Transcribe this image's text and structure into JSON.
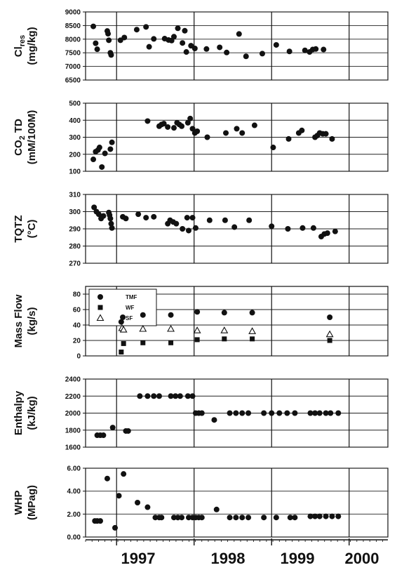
{
  "chart_data": {
    "type": "scatter",
    "x_axis": {
      "labels": [
        "1997",
        "1998",
        "1999",
        "2000"
      ],
      "boundaries": [
        1997.0,
        1998.0,
        1999.0,
        2000.0
      ],
      "range": [
        1996.6,
        2000.5
      ]
    },
    "panels": [
      {
        "id": "clres",
        "ylabel_line1": "Cl",
        "ylabel_sub": "res",
        "ylabel_line2": "(mg/kg)",
        "ylim": [
          6500,
          9000
        ],
        "yticks": [
          6500,
          7000,
          7500,
          8000,
          8500,
          9000
        ],
        "series": [
          {
            "marker": "circle",
            "points": [
              [
                1996.7,
                8470
              ],
              [
                1996.73,
                7850
              ],
              [
                1996.75,
                7630
              ],
              [
                1996.88,
                8300
              ],
              [
                1996.89,
                8200
              ],
              [
                1996.9,
                7960
              ],
              [
                1996.92,
                7500
              ],
              [
                1996.93,
                7420
              ],
              [
                1997.05,
                7960
              ],
              [
                1997.1,
                8060
              ],
              [
                1997.26,
                8350
              ],
              [
                1997.38,
                8450
              ],
              [
                1997.42,
                7720
              ],
              [
                1997.48,
                8010
              ],
              [
                1997.62,
                8020
              ],
              [
                1997.67,
                7970
              ],
              [
                1997.71,
                7950
              ],
              [
                1997.74,
                8090
              ],
              [
                1997.79,
                8400
              ],
              [
                1997.85,
                7860
              ],
              [
                1997.88,
                8310
              ],
              [
                1997.9,
                7530
              ],
              [
                1997.96,
                7760
              ],
              [
                1998.01,
                7660
              ],
              [
                1998.16,
                7640
              ],
              [
                1998.33,
                7700
              ],
              [
                1998.42,
                7510
              ],
              [
                1998.58,
                8190
              ],
              [
                1998.67,
                7370
              ],
              [
                1998.88,
                7470
              ],
              [
                1999.06,
                7790
              ],
              [
                1999.23,
                7550
              ],
              [
                1999.43,
                7590
              ],
              [
                1999.49,
                7530
              ],
              [
                1999.53,
                7620
              ],
              [
                1999.57,
                7640
              ],
              [
                1999.67,
                7620
              ]
            ]
          }
        ]
      },
      {
        "id": "co2td",
        "ylabel_line1": "CO",
        "ylabel_sub": "2",
        "ylabel_after_sub": " TD",
        "ylabel_line2": "(mM/100M)",
        "ylim": [
          100,
          500
        ],
        "yticks": [
          100,
          200,
          300,
          400,
          500
        ],
        "series": [
          {
            "marker": "circle",
            "points": [
              [
                1996.7,
                170
              ],
              [
                1996.73,
                215
              ],
              [
                1996.76,
                225
              ],
              [
                1996.78,
                240
              ],
              [
                1996.81,
                125
              ],
              [
                1996.85,
                205
              ],
              [
                1996.92,
                230
              ],
              [
                1996.94,
                270
              ],
              [
                1997.4,
                395
              ],
              [
                1997.55,
                365
              ],
              [
                1997.58,
                375
              ],
              [
                1997.61,
                380
              ],
              [
                1997.66,
                360
              ],
              [
                1997.74,
                355
              ],
              [
                1997.78,
                385
              ],
              [
                1997.81,
                375
              ],
              [
                1997.84,
                365
              ],
              [
                1997.92,
                385
              ],
              [
                1997.95,
                410
              ],
              [
                1997.98,
                350
              ],
              [
                1998.01,
                325
              ],
              [
                1998.04,
                335
              ],
              [
                1998.17,
                300
              ],
              [
                1998.41,
                325
              ],
              [
                1998.55,
                350
              ],
              [
                1998.62,
                325
              ],
              [
                1998.78,
                370
              ],
              [
                1999.02,
                240
              ],
              [
                1999.22,
                290
              ],
              [
                1999.35,
                325
              ],
              [
                1999.39,
                340
              ],
              [
                1999.56,
                300
              ],
              [
                1999.59,
                310
              ],
              [
                1999.62,
                325
              ],
              [
                1999.66,
                320
              ],
              [
                1999.7,
                320
              ],
              [
                1999.78,
                290
              ]
            ]
          }
        ]
      },
      {
        "id": "tqtz",
        "ylabel_line1": "TQTZ",
        "ylabel_line2": "(°C)",
        "ylim": [
          270,
          310
        ],
        "yticks": [
          270,
          280,
          290,
          300,
          310
        ],
        "series": [
          {
            "marker": "circle",
            "points": [
              [
                1996.71,
                302.5
              ],
              [
                1996.74,
                300.0
              ],
              [
                1996.77,
                298.5
              ],
              [
                1996.8,
                296.0
              ],
              [
                1996.83,
                297.5
              ],
              [
                1996.9,
                299.5
              ],
              [
                1996.91,
                298.0
              ],
              [
                1996.92,
                296.0
              ],
              [
                1996.93,
                293.0
              ],
              [
                1996.94,
                290.5
              ],
              [
                1997.08,
                297.0
              ],
              [
                1997.12,
                296.0
              ],
              [
                1997.28,
                298.5
              ],
              [
                1997.38,
                296.5
              ],
              [
                1997.48,
                297.0
              ],
              [
                1997.66,
                293.0
              ],
              [
                1997.69,
                295.0
              ],
              [
                1997.73,
                294.0
              ],
              [
                1997.77,
                293.0
              ],
              [
                1997.85,
                290.0
              ],
              [
                1997.91,
                296.5
              ],
              [
                1997.93,
                289.0
              ],
              [
                1997.98,
                296.5
              ],
              [
                1998.02,
                290.5
              ],
              [
                1998.2,
                295.0
              ],
              [
                1998.4,
                295.0
              ],
              [
                1998.52,
                291.0
              ],
              [
                1998.71,
                295.0
              ],
              [
                1999.0,
                291.5
              ],
              [
                1999.21,
                290.0
              ],
              [
                1999.4,
                290.5
              ],
              [
                1999.54,
                290.5
              ],
              [
                1999.64,
                285.5
              ],
              [
                1999.68,
                287.0
              ],
              [
                1999.72,
                287.5
              ],
              [
                1999.82,
                288.5
              ]
            ]
          }
        ]
      },
      {
        "id": "massflow",
        "ylabel_line1": "Mass Flow",
        "ylabel_line2": "(kg/s)",
        "ylim": [
          0,
          90
        ],
        "yticks": [
          0,
          20,
          40,
          60,
          80
        ],
        "legend": {
          "position": "top-left",
          "entries": [
            "TMF",
            "WF",
            "SF"
          ]
        },
        "series": [
          {
            "name": "TMF",
            "marker": "circle",
            "points": [
              [
                1997.06,
                44
              ],
              [
                1997.08,
                50
              ],
              [
                1997.34,
                53
              ],
              [
                1997.7,
                53
              ],
              [
                1998.04,
                57
              ],
              [
                1998.39,
                56
              ],
              [
                1998.75,
                56
              ],
              [
                1999.75,
                50
              ]
            ]
          },
          {
            "name": "WF",
            "marker": "square",
            "points": [
              [
                1997.06,
                5
              ],
              [
                1997.09,
                16
              ],
              [
                1997.34,
                17
              ],
              [
                1997.7,
                17
              ],
              [
                1998.04,
                21
              ],
              [
                1998.39,
                22
              ],
              [
                1998.75,
                22
              ],
              [
                1999.75,
                20
              ]
            ]
          },
          {
            "name": "SF",
            "marker": "triangle",
            "points": [
              [
                1997.07,
                36
              ],
              [
                1997.09,
                34
              ],
              [
                1997.34,
                35
              ],
              [
                1997.7,
                35
              ],
              [
                1998.04,
                33
              ],
              [
                1998.39,
                33
              ],
              [
                1998.75,
                32
              ],
              [
                1999.75,
                28
              ]
            ]
          }
        ]
      },
      {
        "id": "enthalpy",
        "ylabel_line1": "Enthalpy",
        "ylabel_line2": "(kJ/kg)",
        "ylim": [
          1600,
          2400
        ],
        "yticks": [
          1600,
          1800,
          2000,
          2200,
          2400
        ],
        "series": [
          {
            "marker": "circle",
            "points": [
              [
                1996.75,
                1740
              ],
              [
                1996.79,
                1740
              ],
              [
                1996.83,
                1740
              ],
              [
                1996.95,
                1830
              ],
              [
                1997.12,
                1790
              ],
              [
                1997.15,
                1790
              ],
              [
                1997.3,
                2200
              ],
              [
                1997.4,
                2200
              ],
              [
                1997.48,
                2200
              ],
              [
                1997.55,
                2200
              ],
              [
                1997.7,
                2200
              ],
              [
                1997.76,
                2200
              ],
              [
                1997.82,
                2200
              ],
              [
                1997.92,
                2200
              ],
              [
                1997.98,
                2200
              ],
              [
                1998.02,
                2000
              ],
              [
                1998.06,
                2000
              ],
              [
                1998.1,
                2000
              ],
              [
                1998.26,
                1920
              ],
              [
                1998.46,
                2000
              ],
              [
                1998.54,
                2000
              ],
              [
                1998.62,
                2000
              ],
              [
                1998.7,
                2000
              ],
              [
                1998.9,
                2000
              ],
              [
                1999.0,
                2000
              ],
              [
                1999.1,
                2000
              ],
              [
                1999.2,
                2000
              ],
              [
                1999.3,
                2000
              ],
              [
                1999.5,
                2000
              ],
              [
                1999.56,
                2000
              ],
              [
                1999.62,
                2000
              ],
              [
                1999.7,
                2000
              ],
              [
                1999.76,
                2000
              ],
              [
                1999.86,
                2000
              ]
            ]
          }
        ]
      },
      {
        "id": "whp",
        "ylabel_line1": "WHP",
        "ylabel_line2": "(MPag)",
        "ylim": [
          0.0,
          6.0
        ],
        "yticks": [
          0.0,
          2.0,
          4.0,
          6.0
        ],
        "series": [
          {
            "marker": "circle",
            "points": [
              [
                1996.72,
                1.4
              ],
              [
                1996.75,
                1.4
              ],
              [
                1996.79,
                1.4
              ],
              [
                1996.88,
                5.1
              ],
              [
                1996.98,
                0.8
              ],
              [
                1997.03,
                3.6
              ],
              [
                1997.09,
                5.5
              ],
              [
                1997.27,
                3.0
              ],
              [
                1997.4,
                2.6
              ],
              [
                1997.5,
                1.7
              ],
              [
                1997.55,
                1.7
              ],
              [
                1997.58,
                1.7
              ],
              [
                1997.74,
                1.7
              ],
              [
                1997.79,
                1.7
              ],
              [
                1997.84,
                1.7
              ],
              [
                1997.93,
                1.7
              ],
              [
                1997.98,
                1.7
              ],
              [
                1998.02,
                1.7
              ],
              [
                1998.06,
                1.7
              ],
              [
                1998.1,
                1.7
              ],
              [
                1998.29,
                2.4
              ],
              [
                1998.46,
                1.7
              ],
              [
                1998.54,
                1.7
              ],
              [
                1998.62,
                1.7
              ],
              [
                1998.7,
                1.7
              ],
              [
                1998.9,
                1.7
              ],
              [
                1999.06,
                1.7
              ],
              [
                1999.24,
                1.7
              ],
              [
                1999.3,
                1.7
              ],
              [
                1999.5,
                1.8
              ],
              [
                1999.56,
                1.8
              ],
              [
                1999.62,
                1.8
              ],
              [
                1999.7,
                1.8
              ],
              [
                1999.78,
                1.8
              ],
              [
                1999.86,
                1.8
              ]
            ]
          }
        ]
      }
    ]
  }
}
